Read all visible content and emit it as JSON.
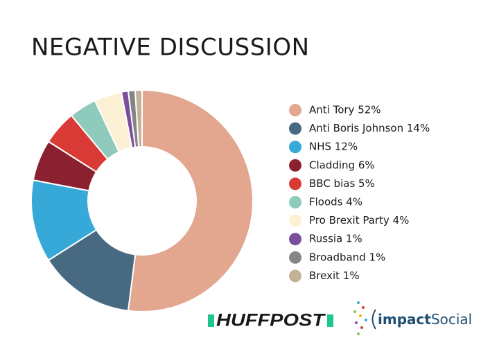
{
  "chart_data": {
    "type": "donut",
    "title": "NEGATIVE DISCUSSION",
    "categories": [
      "Anti Tory 52%",
      "Anti Boris Johnson 14%",
      "NHS 12%",
      "Cladding 6%",
      "BBC bias 5%",
      "Floods 4%",
      "Pro Brexit Party 4%",
      "Russia 1%",
      "Broadband 1%",
      "Brexit 1%"
    ],
    "values": [
      52,
      14,
      12,
      6,
      5,
      4,
      4,
      1,
      1,
      1
    ],
    "colors": [
      "#e3a68f",
      "#476a82",
      "#36a9d8",
      "#8b2130",
      "#d93a35",
      "#8ecbbd",
      "#fdf1d5",
      "#7b4e9e",
      "#858585",
      "#c3b198"
    ],
    "legend": "right"
  },
  "logos": {
    "huffpost": "HUFFPOST",
    "impact": "impact",
    "social": "Social"
  }
}
